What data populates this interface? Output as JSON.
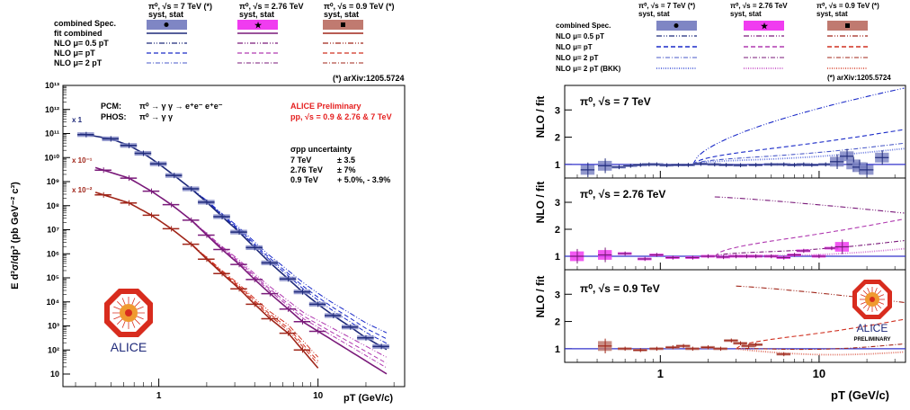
{
  "colors": {
    "s7": "#1f2a7a",
    "s7box": "#7f86c4",
    "s276": "#7a1a7a",
    "s276box": "#f03cf0",
    "s09": "#a0261a",
    "s09box": "#c07a70",
    "nlo7": "#1a2ac8",
    "ratio_line": "#3333cc"
  },
  "legend_left": {
    "headers": [
      {
        "line1": "π⁰, √s = 7 TeV (*)",
        "line2": "syst, stat"
      },
      {
        "line1": "π⁰, √s = 2.76 TeV",
        "line2": "syst, stat"
      },
      {
        "line1": "π⁰, √s = 0.9 TeV (*)",
        "line2": "syst, stat"
      }
    ],
    "rows": [
      "combined Spec.",
      "fit combined",
      "NLO μ= 0.5 pT",
      "NLO μ= pT",
      "NLO μ= 2 pT"
    ]
  },
  "legend_right": {
    "headers": [
      {
        "line1": "π⁰, √s = 7 TeV (*)",
        "line2": "syst, stat"
      },
      {
        "line1": "π⁰, √s = 2.76 TeV",
        "line2": "syst, stat"
      },
      {
        "line1": "π⁰, √s = 0.9 TeV (*)",
        "line2": "syst, stat"
      }
    ],
    "rows": [
      "combined Spec.",
      "NLO μ= 0.5 pT",
      "NLO μ= pT",
      "NLO μ= 2 pT",
      "NLO μ= 2 pT (BKK)"
    ]
  },
  "arxiv_left": "(*) arXiv:1205.5724",
  "arxiv_right": "(*) arXiv:1205.5724",
  "left_panel": {
    "ylabel": "E d³σ/dp³ (pb GeV⁻² c³)",
    "xlabel": "pT (GeV/c)",
    "pcm_label": "PCM:",
    "pcm_text": "π⁰ → γ γ → e⁺e⁻ e⁺e⁻",
    "phos_label": "PHOS:",
    "phos_text": "π⁰ → γ γ",
    "alice_line1": "ALICE Preliminary",
    "alice_line2": "pp, √s = 0.9 & 2.76 & 7 TeV",
    "unc_title": "σpp uncertainty",
    "unc_rows": [
      {
        "energy": "7 TeV",
        "value": "± 3.5"
      },
      {
        "energy": "2.76 TeV",
        "value": "± 7%"
      },
      {
        "energy": "0.9 TeV",
        "value": "+ 5.0%, - 3.9%"
      }
    ],
    "scale_labels": [
      "x 1",
      "x 10⁻¹",
      "x 10⁻²"
    ],
    "logo_text": "ALICE"
  },
  "right_panel": {
    "ylabel": "NLO / fit",
    "xlabel": "pT (GeV/c)",
    "titles": [
      "π⁰, √s = 7 TeV",
      "π⁰, √s = 2.76 TeV",
      "π⁰, √s = 0.9 TeV"
    ],
    "logo_text": "ALICE",
    "logo_sub": "PRELIMINARY"
  },
  "chart_data": [
    {
      "type": "scatter",
      "xscale": "log",
      "yscale": "log",
      "xlim": [
        0.25,
        35
      ],
      "ylim": [
        3,
        10000000000000.0
      ],
      "xticks": [
        1,
        10
      ],
      "yticks": [
        10,
        100,
        1000,
        10000,
        100000,
        1000000,
        10000000,
        100000000,
        1000000000,
        10000000000,
        100000000000,
        1000000000000,
        10000000000000
      ],
      "ytick_labels": [
        "10",
        "10²",
        "10³",
        "10⁴",
        "10⁵",
        "10⁶",
        "10⁷",
        "10⁸",
        "10⁹",
        "10¹⁰",
        "10¹¹",
        "10¹²",
        "10¹³"
      ],
      "series": [
        {
          "x": [
            0.35,
            0.5,
            0.65,
            0.8,
            1.0,
            1.25,
            1.6,
            2.0,
            2.5,
            3.2,
            4.0,
            5.0,
            6.5,
            8.0,
            10.0,
            12.5,
            16.0,
            20.0,
            25.0
          ],
          "y": [
            90000000000.0,
            60000000000.0,
            32000000000.0,
            15000000000.0,
            5500000000.0,
            1800000000.0,
            500000000.0,
            140000000.0,
            35000000.0,
            8000000.0,
            1800000.0,
            420000.0,
            90000.0,
            26000.0,
            8000.0,
            2700.0,
            900,
            320,
            140
          ],
          "fit": [
            0.32,
            27
          ],
          "fit_norm": 1
        },
        {
          "x": [
            0.45,
            0.65,
            0.9,
            1.2,
            1.6,
            2.0,
            2.5,
            3.2,
            4.0,
            5.0,
            6.5,
            8.0,
            10.0
          ],
          "y": [
            3000000000.0,
            1400000000.0,
            400000000.0,
            110000000.0,
            25000000.0,
            6000000.0,
            1500000.0,
            360000.0,
            85000.0,
            22000.0,
            5000.0,
            1500.0,
            600
          ],
          "fit": [
            0.4,
            27
          ],
          "fit_norm": 0.1
        },
        {
          "x": [
            0.45,
            0.65,
            0.9,
            1.2,
            1.6,
            2.0,
            2.5,
            3.2,
            4.0,
            5.0,
            6.5,
            8.0
          ],
          "y": [
            280000000.0,
            130000000.0,
            40000000.0,
            11000000.0,
            2500000.0,
            600000.0,
            150000.0,
            35000.0,
            8000.0,
            2000.0,
            500,
            100
          ],
          "fit": [
            0.4,
            10
          ],
          "fit_norm": 0.01
        }
      ]
    },
    {
      "type": "scatter",
      "xscale": "log",
      "xlim": [
        0.25,
        35
      ],
      "ylim": [
        0.5,
        3.9
      ],
      "yticks": [
        1,
        2,
        3
      ],
      "xticks": [
        1,
        10
      ],
      "panels": [
        {
          "x": [
            0.35,
            0.45,
            0.55,
            0.65,
            0.75,
            0.85,
            0.95,
            1.1,
            1.3,
            1.5,
            1.8,
            2.2,
            2.6,
            3.2,
            4.0,
            5.0,
            6.0,
            7.0,
            8.0,
            9.0,
            11,
            13,
            15,
            16.5,
            18,
            20,
            25
          ],
          "y": [
            0.8,
            0.95,
            0.9,
            0.95,
            0.98,
            1.0,
            1.0,
            0.97,
            0.98,
            0.98,
            1.02,
            1.0,
            0.98,
            0.97,
            0.98,
            1.0,
            1.0,
            0.98,
            1.0,
            0.98,
            1.0,
            1.1,
            1.3,
            1.0,
            0.9,
            0.8,
            1.25
          ]
        },
        {
          "x": [
            0.3,
            0.45,
            0.6,
            0.8,
            0.95,
            1.2,
            1.6,
            2.0,
            2.5,
            3.0,
            3.5,
            4.0,
            5.0,
            6.0,
            7.0,
            8.0,
            10,
            12,
            14
          ],
          "y": [
            1.0,
            1.05,
            1.1,
            0.9,
            1.05,
            0.95,
            0.95,
            1.0,
            0.97,
            1.0,
            1.0,
            1.0,
            1.0,
            0.95,
            1.05,
            1.2,
            1.0,
            1.3,
            1.35
          ]
        },
        {
          "x": [
            0.45,
            0.6,
            0.75,
            0.95,
            1.2,
            1.4,
            1.6,
            2.0,
            2.4,
            2.8,
            3.2,
            3.6,
            4.0,
            6.0
          ],
          "y": [
            1.1,
            1.0,
            0.95,
            1.0,
            1.05,
            1.1,
            1.0,
            1.05,
            1.0,
            1.3,
            1.2,
            1.1,
            1.15,
            0.8
          ]
        }
      ]
    }
  ]
}
